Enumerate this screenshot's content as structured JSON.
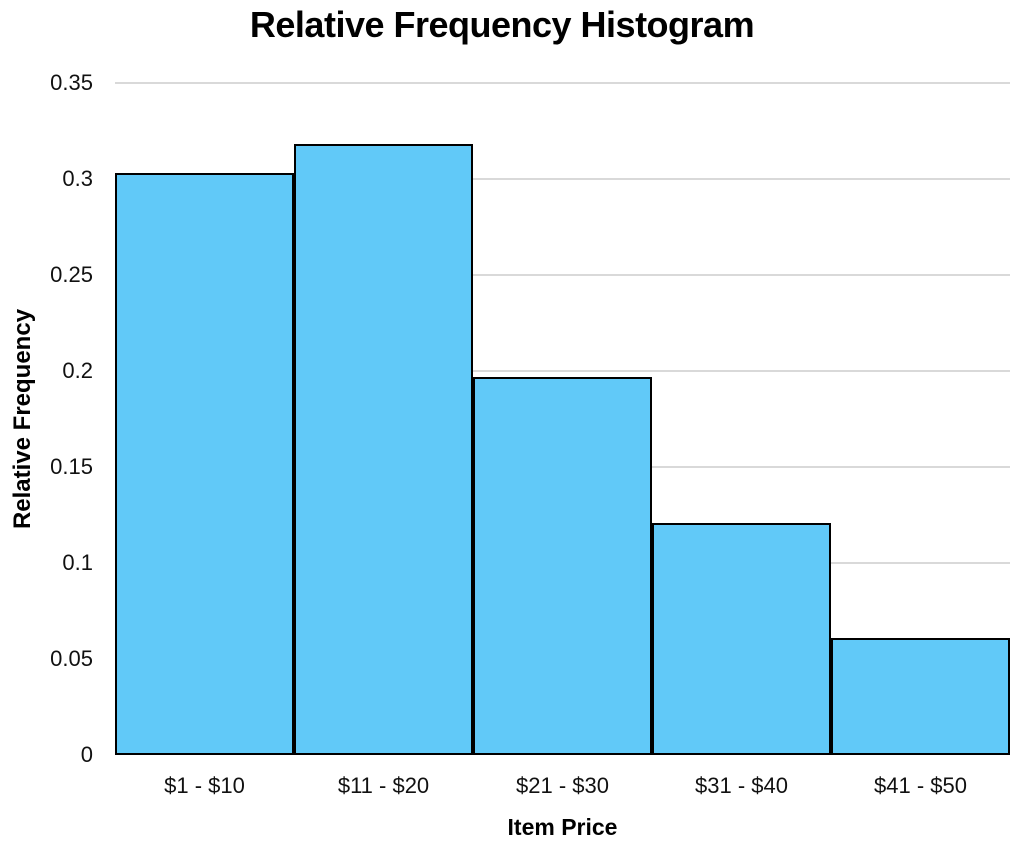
{
  "chart_data": {
    "type": "bar",
    "subtype": "relative-frequency-histogram",
    "title": "Relative Frequency Histogram",
    "xlabel": "Item Price",
    "ylabel": "Relative Frequency",
    "categories": [
      "$1 - $10",
      "$11 - $20",
      "$21 - $30",
      "$31 - $40",
      "$41 - $50"
    ],
    "values": [
      0.303,
      0.318,
      0.197,
      0.121,
      0.061
    ],
    "ylim": [
      0,
      0.35
    ],
    "yticks": [
      0,
      0.05,
      0.1,
      0.15,
      0.2,
      0.25,
      0.3,
      0.35
    ],
    "ytick_labels": [
      "0",
      "0.05",
      "0.1",
      "0.15",
      "0.2",
      "0.25",
      "0.3",
      "0.35"
    ],
    "grid": "horizontal",
    "legend": "none",
    "bar_gap": 0,
    "colors": {
      "bar_fill": "#61C9F8",
      "bar_border": "#000000",
      "gridline": "#D9D9D9",
      "text": "#000000"
    }
  }
}
